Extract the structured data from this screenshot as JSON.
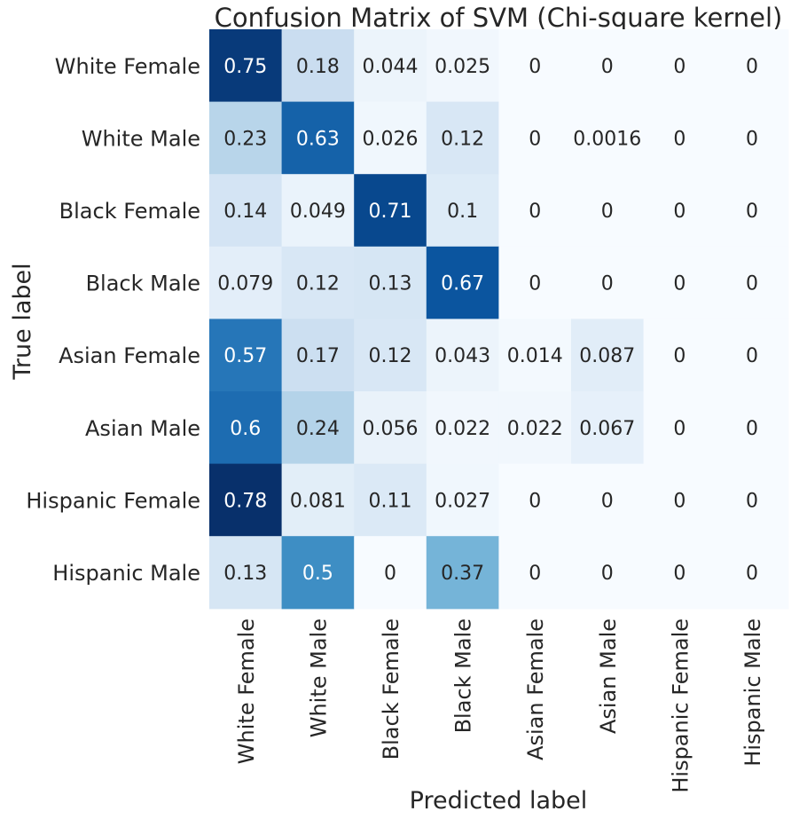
{
  "chart_data": {
    "type": "heatmap",
    "title": "Confusion Matrix of SVM (Chi-square kernel)",
    "xlabel": "Predicted label",
    "ylabel": "True label",
    "x_categories": [
      "White Female",
      "White Male",
      "Black Female",
      "Black Male",
      "Asian Female",
      "Asian Male",
      "Hispanic Female",
      "Hispanic Male"
    ],
    "y_categories": [
      "White Female",
      "White Male",
      "Black Female",
      "Black Male",
      "Asian Female",
      "Asian Male",
      "Hispanic Female",
      "Hispanic Male"
    ],
    "values": [
      [
        0.75,
        0.18,
        0.044,
        0.025,
        0,
        0,
        0,
        0
      ],
      [
        0.23,
        0.63,
        0.026,
        0.12,
        0,
        0.0016,
        0,
        0
      ],
      [
        0.14,
        0.049,
        0.71,
        0.1,
        0,
        0,
        0,
        0
      ],
      [
        0.079,
        0.12,
        0.13,
        0.67,
        0,
        0,
        0,
        0
      ],
      [
        0.57,
        0.17,
        0.12,
        0.043,
        0.014,
        0.087,
        0,
        0
      ],
      [
        0.6,
        0.24,
        0.056,
        0.022,
        0.022,
        0.067,
        0,
        0
      ],
      [
        0.78,
        0.081,
        0.11,
        0.027,
        0,
        0,
        0,
        0
      ],
      [
        0.13,
        0.5,
        0,
        0.37,
        0,
        0,
        0,
        0
      ]
    ],
    "labels": [
      [
        "0.75",
        "0.18",
        "0.044",
        "0.025",
        "0",
        "0",
        "0",
        "0"
      ],
      [
        "0.23",
        "0.63",
        "0.026",
        "0.12",
        "0",
        "0.0016",
        "0",
        "0"
      ],
      [
        "0.14",
        "0.049",
        "0.71",
        "0.1",
        "0",
        "0",
        "0",
        "0"
      ],
      [
        "0.079",
        "0.12",
        "0.13",
        "0.67",
        "0",
        "0",
        "0",
        "0"
      ],
      [
        "0.57",
        "0.17",
        "0.12",
        "0.043",
        "0.014",
        "0.087",
        "0",
        "0"
      ],
      [
        "0.6",
        "0.24",
        "0.056",
        "0.022",
        "0.022",
        "0.067",
        "0",
        "0"
      ],
      [
        "0.78",
        "0.081",
        "0.11",
        "0.027",
        "0",
        "0",
        "0",
        "0"
      ],
      [
        "0.13",
        "0.5",
        "0",
        "0.37",
        "0",
        "0",
        "0",
        "0"
      ]
    ],
    "colormap": "Blues",
    "vmin": 0,
    "vmax": 0.78,
    "colorbar": false,
    "grid": false
  }
}
